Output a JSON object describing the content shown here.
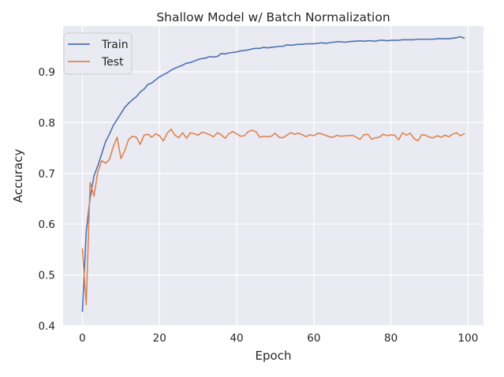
{
  "chart_data": {
    "type": "line",
    "title": "Shallow Model w/ Batch Normalization",
    "xlabel": "Epoch",
    "ylabel": "Accuracy",
    "xlim": [
      -5,
      104
    ],
    "ylim": [
      0.4,
      0.99
    ],
    "x_ticks": [
      0,
      20,
      40,
      60,
      80,
      100
    ],
    "y_ticks": [
      0.4,
      0.5,
      0.6,
      0.7,
      0.8,
      0.9
    ],
    "x_tick_labels": [
      "0",
      "20",
      "40",
      "60",
      "80",
      "100"
    ],
    "y_tick_labels": [
      "0.4",
      "0.5",
      "0.6",
      "0.7",
      "0.8",
      "0.9"
    ],
    "grid": true,
    "legend_position": "top-left",
    "x": [
      0,
      1,
      2,
      3,
      4,
      5,
      6,
      7,
      8,
      9,
      10,
      11,
      12,
      13,
      14,
      15,
      16,
      17,
      18,
      19,
      20,
      21,
      22,
      23,
      24,
      25,
      26,
      27,
      28,
      29,
      30,
      31,
      32,
      33,
      34,
      35,
      36,
      37,
      38,
      39,
      40,
      41,
      42,
      43,
      44,
      45,
      46,
      47,
      48,
      49,
      50,
      51,
      52,
      53,
      54,
      55,
      56,
      57,
      58,
      59,
      60,
      61,
      62,
      63,
      64,
      65,
      66,
      67,
      68,
      69,
      70,
      71,
      72,
      73,
      74,
      75,
      76,
      77,
      78,
      79,
      80,
      81,
      82,
      83,
      84,
      85,
      86,
      87,
      88,
      89,
      90,
      91,
      92,
      93,
      94,
      95,
      96,
      97,
      98,
      99
    ],
    "series": [
      {
        "name": "Train",
        "color": "#4c72b0",
        "values": [
          0.428,
          0.585,
          0.651,
          0.695,
          0.715,
          0.738,
          0.762,
          0.777,
          0.794,
          0.806,
          0.818,
          0.83,
          0.838,
          0.845,
          0.851,
          0.86,
          0.866,
          0.875,
          0.878,
          0.884,
          0.89,
          0.894,
          0.898,
          0.903,
          0.907,
          0.91,
          0.913,
          0.917,
          0.918,
          0.921,
          0.924,
          0.926,
          0.927,
          0.93,
          0.929,
          0.93,
          0.936,
          0.935,
          0.937,
          0.938,
          0.939,
          0.941,
          0.942,
          0.943,
          0.945,
          0.946,
          0.946,
          0.948,
          0.947,
          0.948,
          0.949,
          0.95,
          0.95,
          0.953,
          0.952,
          0.953,
          0.954,
          0.954,
          0.955,
          0.955,
          0.955,
          0.956,
          0.957,
          0.956,
          0.957,
          0.958,
          0.959,
          0.959,
          0.958,
          0.959,
          0.96,
          0.96,
          0.961,
          0.96,
          0.961,
          0.961,
          0.96,
          0.962,
          0.962,
          0.961,
          0.962,
          0.962,
          0.962,
          0.963,
          0.963,
          0.963,
          0.963,
          0.964,
          0.964,
          0.964,
          0.964,
          0.964,
          0.965,
          0.965,
          0.965,
          0.965,
          0.966,
          0.967,
          0.969,
          0.966
        ]
      },
      {
        "name": "Test",
        "color": "#dd8452",
        "values": [
          0.551,
          0.441,
          0.682,
          0.655,
          0.703,
          0.725,
          0.72,
          0.727,
          0.752,
          0.771,
          0.729,
          0.745,
          0.767,
          0.773,
          0.771,
          0.757,
          0.775,
          0.777,
          0.771,
          0.778,
          0.774,
          0.764,
          0.779,
          0.787,
          0.775,
          0.77,
          0.78,
          0.769,
          0.78,
          0.778,
          0.775,
          0.781,
          0.779,
          0.776,
          0.772,
          0.78,
          0.776,
          0.769,
          0.778,
          0.782,
          0.778,
          0.773,
          0.774,
          0.782,
          0.785,
          0.782,
          0.771,
          0.773,
          0.772,
          0.773,
          0.779,
          0.771,
          0.77,
          0.775,
          0.78,
          0.777,
          0.779,
          0.776,
          0.772,
          0.776,
          0.774,
          0.779,
          0.778,
          0.775,
          0.772,
          0.771,
          0.775,
          0.773,
          0.774,
          0.774,
          0.775,
          0.771,
          0.767,
          0.776,
          0.777,
          0.767,
          0.77,
          0.771,
          0.777,
          0.774,
          0.776,
          0.775,
          0.766,
          0.78,
          0.775,
          0.779,
          0.768,
          0.764,
          0.776,
          0.775,
          0.771,
          0.77,
          0.774,
          0.771,
          0.775,
          0.772,
          0.777,
          0.78,
          0.774,
          0.778
        ]
      }
    ]
  }
}
